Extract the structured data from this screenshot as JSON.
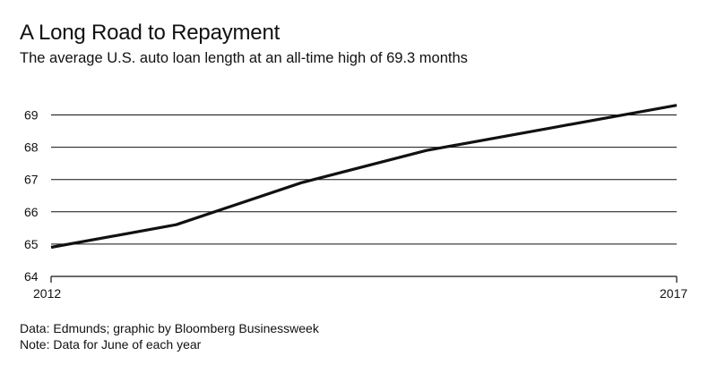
{
  "title": "A Long Road to Repayment",
  "subtitle": "The average U.S. auto loan length at an all-time high of 69.3 months",
  "source": "Data: Edmunds; graphic by Bloomberg Businessweek",
  "note": "Note: Data for June of each year",
  "colors": {
    "line": "#111111",
    "grid": "#111111",
    "background": "#ffffff"
  },
  "chart_data": {
    "type": "line",
    "title": "A Long Road to Repayment",
    "subtitle": "The average U.S. auto loan length at an all-time high of 69.3 months",
    "xlabel": "",
    "ylabel": "",
    "x_tick_labels": [
      "2012",
      "2017"
    ],
    "y_ticks": [
      64,
      65,
      66,
      67,
      68,
      69
    ],
    "ylim": [
      64,
      69.3
    ],
    "xlim": [
      2012,
      2017
    ],
    "grid": true,
    "series": [
      {
        "x": [
          2012,
          2013,
          2014,
          2015,
          2016,
          2017
        ],
        "values": [
          64.9,
          65.6,
          66.9,
          67.9,
          68.6,
          69.3
        ]
      }
    ]
  }
}
